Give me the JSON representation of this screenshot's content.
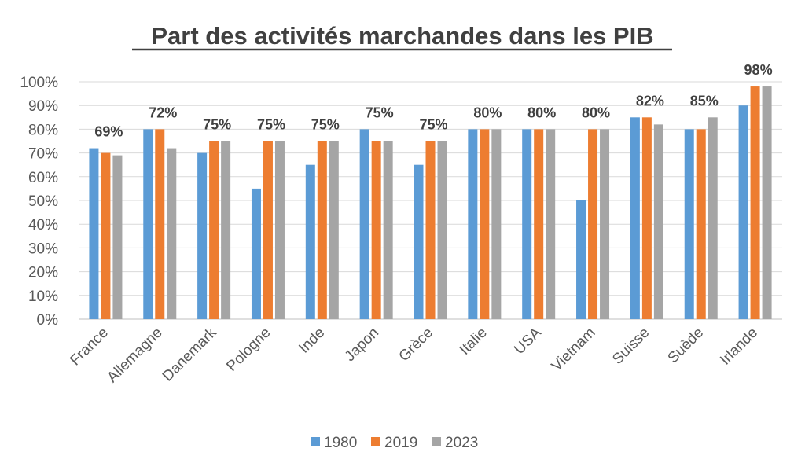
{
  "chart_data": {
    "type": "bar",
    "title": "Part des activités marchandes dans les PIB",
    "xlabel": "",
    "ylabel": "",
    "ylim": [
      0,
      100
    ],
    "y_ticks": [
      "0%",
      "10%",
      "20%",
      "30%",
      "40%",
      "50%",
      "60%",
      "70%",
      "80%",
      "90%",
      "100%"
    ],
    "grid": true,
    "legend_position": "bottom",
    "categories": [
      "France",
      "Allemagne",
      "Danemark",
      "Pologne",
      "Inde",
      "Japon",
      "Grèce",
      "Italie",
      "USA",
      "Vietnam",
      "Suisse",
      "Suède",
      "Irlande"
    ],
    "series": [
      {
        "name": "1980",
        "color": "#5B9BD5",
        "values": [
          72,
          80,
          70,
          55,
          65,
          80,
          65,
          80,
          80,
          50,
          85,
          80,
          90
        ]
      },
      {
        "name": "2019",
        "color": "#ED7D31",
        "values": [
          70,
          80,
          75,
          75,
          75,
          75,
          75,
          80,
          80,
          80,
          85,
          80,
          98
        ]
      },
      {
        "name": "2023",
        "color": "#A5A5A5",
        "values": [
          69,
          72,
          75,
          75,
          75,
          75,
          75,
          80,
          80,
          80,
          82,
          85,
          98
        ]
      }
    ],
    "data_labels": [
      "69%",
      "72%",
      "75%",
      "75%",
      "75%",
      "75%",
      "75%",
      "80%",
      "80%",
      "80%",
      "82%",
      "85%",
      "98%"
    ]
  }
}
